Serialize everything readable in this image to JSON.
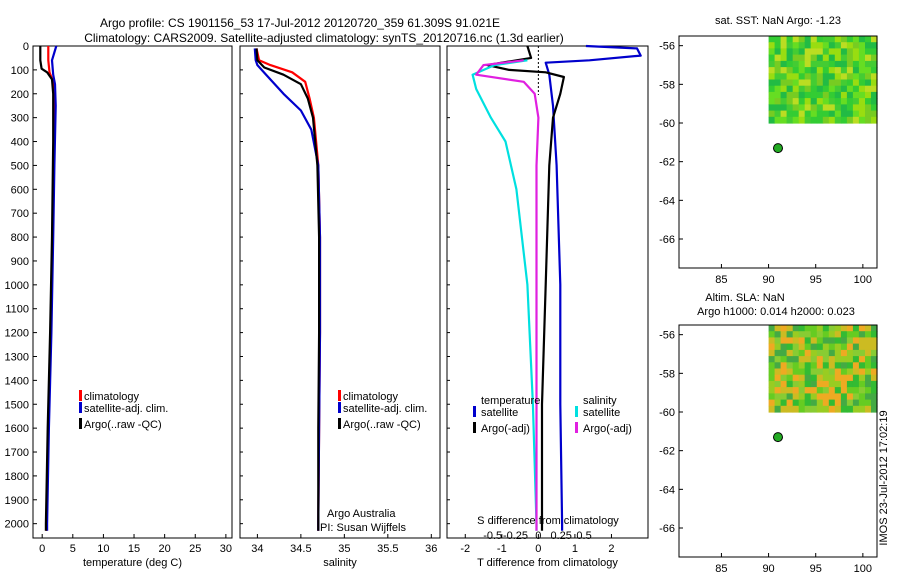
{
  "header": {
    "line1": "Argo profile: CS 1901156_53 17-Jul-2012 20120720_359 61.309S 91.021E",
    "line2": "Climatology: CARS2009. Satellite-adjusted climatology: synTS_20120716.nc (1.3d earlier)"
  },
  "footer": {
    "stamp": "IMOS 23-Jul-2012 17:02:19"
  },
  "colors": {
    "climatology": "#ff0000",
    "satellite": "#0000cc",
    "argo": "#000000",
    "cyan": "#00e0e0",
    "magenta": "#e020e0"
  },
  "chart_data": [
    {
      "type": "line",
      "name": "temperature-panel",
      "xlabel": "temperature (deg C)",
      "ylabel": "",
      "xlim": [
        -1.5,
        31
      ],
      "ylim": [
        2060,
        0
      ],
      "xticks": [
        "0",
        "5",
        "10",
        "15",
        "20",
        "25",
        "30"
      ],
      "yticks": [
        "0",
        "100",
        "200",
        "300",
        "400",
        "500",
        "600",
        "700",
        "800",
        "900",
        "1000",
        "1100",
        "1200",
        "1300",
        "1400",
        "1500",
        "1600",
        "1700",
        "1800",
        "1900",
        "2000"
      ],
      "legend": [
        "climatology",
        "satellite-adj. clim.",
        "Argo(..raw -QC)"
      ],
      "series": [
        {
          "name": "climatology",
          "color": "#ff0000",
          "points": [
            [
              1.0,
              0
            ],
            [
              1.0,
              60
            ],
            [
              1.2,
              110
            ],
            [
              1.8,
              150
            ],
            [
              2.0,
              200
            ],
            [
              1.9,
              400
            ],
            [
              1.7,
              800
            ],
            [
              1.4,
              1200
            ],
            [
              1.0,
              1600
            ],
            [
              0.7,
              2000
            ],
            [
              0.7,
              2030
            ]
          ]
        },
        {
          "name": "satellite-adj. clim.",
          "color": "#0000cc",
          "points": [
            [
              2.3,
              0
            ],
            [
              1.6,
              60
            ],
            [
              1.8,
              120
            ],
            [
              2.1,
              160
            ],
            [
              2.2,
              250
            ],
            [
              2.0,
              500
            ],
            [
              1.8,
              800
            ],
            [
              1.5,
              1200
            ],
            [
              1.1,
              1600
            ],
            [
              0.8,
              2000
            ],
            [
              0.8,
              2030
            ]
          ]
        },
        {
          "name": "Argo(..raw -QC)",
          "color": "#000000",
          "points": [
            [
              -0.3,
              0
            ],
            [
              -0.3,
              60
            ],
            [
              -0.1,
              95
            ],
            [
              0.8,
              110
            ],
            [
              1.6,
              140
            ],
            [
              1.8,
              200
            ],
            [
              1.8,
              400
            ],
            [
              1.6,
              800
            ],
            [
              1.3,
              1200
            ],
            [
              0.9,
              1600
            ],
            [
              0.6,
              2000
            ],
            [
              0.6,
              2030
            ]
          ]
        }
      ]
    },
    {
      "type": "line",
      "name": "salinity-panel",
      "xlabel": "salinity",
      "ylabel": "",
      "xlim": [
        33.8,
        36.1
      ],
      "ylim": [
        2060,
        0
      ],
      "xticks": [
        "34",
        "34.5",
        "35",
        "35.5",
        "36"
      ],
      "legend": [
        "climatology",
        "satellite-adj. clim.",
        "Argo(..raw -QC)"
      ],
      "annotation": [
        "Argo Australia",
        "PI: Susan Wijffels"
      ],
      "series": [
        {
          "name": "climatology",
          "color": "#ff0000",
          "points": [
            [
              33.99,
              10
            ],
            [
              34.02,
              60
            ],
            [
              34.15,
              80
            ],
            [
              34.4,
              110
            ],
            [
              34.55,
              150
            ],
            [
              34.6,
              220
            ],
            [
              34.65,
              300
            ],
            [
              34.7,
              500
            ],
            [
              34.72,
              800
            ],
            [
              34.72,
              1200
            ],
            [
              34.71,
              1600
            ],
            [
              34.7,
              2000
            ],
            [
              34.7,
              2030
            ]
          ]
        },
        {
          "name": "satellite-adj. clim.",
          "color": "#0000cc",
          "points": [
            [
              33.97,
              10
            ],
            [
              33.98,
              60
            ],
            [
              34.0,
              80
            ],
            [
              34.1,
              120
            ],
            [
              34.3,
              200
            ],
            [
              34.5,
              270
            ],
            [
              34.62,
              350
            ],
            [
              34.7,
              500
            ],
            [
              34.72,
              800
            ],
            [
              34.72,
              1200
            ],
            [
              34.71,
              1600
            ],
            [
              34.7,
              2000
            ],
            [
              34.7,
              2030
            ]
          ]
        },
        {
          "name": "Argo(..raw -QC)",
          "color": "#000000",
          "points": [
            [
              33.99,
              10
            ],
            [
              34.0,
              60
            ],
            [
              34.08,
              90
            ],
            [
              34.3,
              120
            ],
            [
              34.5,
              160
            ],
            [
              34.58,
              220
            ],
            [
              34.64,
              300
            ],
            [
              34.69,
              500
            ],
            [
              34.71,
              800
            ],
            [
              34.71,
              1200
            ],
            [
              34.7,
              1600
            ],
            [
              34.7,
              2000
            ],
            [
              34.7,
              2030
            ]
          ]
        }
      ]
    },
    {
      "type": "line",
      "name": "difference-panel",
      "xlabel": "T difference from climatology",
      "xlabel_top": "S difference from climatology",
      "xlim": [
        -2.5,
        3
      ],
      "ylim": [
        2060,
        0
      ],
      "xticks": [
        "-2",
        "-1",
        "0",
        "1",
        "2"
      ],
      "xticks_s": [
        "-0.5",
        "-0.25",
        "0",
        "0.25",
        "0.5"
      ],
      "legend_titles": [
        "temperature",
        "salinity"
      ],
      "legend": [
        "satellite",
        "Argo(-adj)",
        "satellite",
        "Argo(-adj)"
      ],
      "series": [
        {
          "name": "satellite",
          "color": "#0000cc",
          "points": [
            [
              1.3,
              0
            ],
            [
              2.7,
              10
            ],
            [
              2.8,
              40
            ],
            [
              1.4,
              60
            ],
            [
              0.2,
              70
            ],
            [
              0.3,
              120
            ],
            [
              0.4,
              250
            ],
            [
              0.5,
              500
            ],
            [
              0.6,
              1000
            ],
            [
              0.6,
              1500
            ],
            [
              0.65,
              2000
            ],
            [
              0.65,
              2030
            ]
          ]
        },
        {
          "name": "Argo(-adj)",
          "color": "#000000",
          "points": [
            [
              -0.3,
              0
            ],
            [
              -0.2,
              50
            ],
            [
              -1.4,
              80
            ],
            [
              -0.8,
              100
            ],
            [
              0.2,
              110
            ],
            [
              0.7,
              130
            ],
            [
              0.6,
              200
            ],
            [
              0.4,
              300
            ],
            [
              0.3,
              500
            ],
            [
              0.2,
              1000
            ],
            [
              0.1,
              1500
            ],
            [
              0.1,
              2000
            ],
            [
              0.1,
              2030
            ]
          ]
        },
        {
          "name": "satellite",
          "color": "#00e0e0",
          "points": [
            [
              -0.3,
              60
            ],
            [
              -1.2,
              80
            ],
            [
              -1.8,
              120
            ],
            [
              -1.7,
              180
            ],
            [
              -1.3,
              300
            ],
            [
              -0.9,
              400
            ],
            [
              -0.6,
              600
            ],
            [
              -0.3,
              1000
            ],
            [
              -0.15,
              1500
            ],
            [
              -0.05,
              2000
            ],
            [
              -0.05,
              2030
            ]
          ]
        },
        {
          "name": "Argo(-adj)",
          "color": "#e020e0",
          "points": [
            [
              -0.4,
              60
            ],
            [
              -1.5,
              80
            ],
            [
              -1.7,
              120
            ],
            [
              -0.4,
              150
            ],
            [
              -0.1,
              200
            ],
            [
              0.0,
              300
            ],
            [
              -0.05,
              500
            ],
            [
              -0.05,
              1000
            ],
            [
              -0.05,
              1500
            ],
            [
              -0.05,
              2030
            ]
          ]
        }
      ]
    },
    {
      "type": "heatmap",
      "name": "sst-map",
      "title": "sat. SST: NaN Argo: -1.23",
      "xlim": [
        80.5,
        101.5
      ],
      "ylim": [
        -67.5,
        -55.5
      ],
      "xticks": [
        "85",
        "90",
        "95",
        "100"
      ],
      "yticks": [
        "-56",
        "-58",
        "-60",
        "-62",
        "-64",
        "-66"
      ],
      "marker": {
        "lon": 91.0,
        "lat": -61.3
      }
    },
    {
      "type": "heatmap",
      "name": "sla-map",
      "title": "Altim. SLA: NaN",
      "subtitle": "Argo h1000: 0.014 h2000: 0.023",
      "xlim": [
        80.5,
        101.5
      ],
      "ylim": [
        -67.5,
        -55.5
      ],
      "xticks": [
        "85",
        "90",
        "95",
        "100"
      ],
      "yticks": [
        "-56",
        "-58",
        "-60",
        "-62",
        "-64",
        "-66"
      ],
      "marker": {
        "lon": 91.0,
        "lat": -61.3
      }
    }
  ]
}
